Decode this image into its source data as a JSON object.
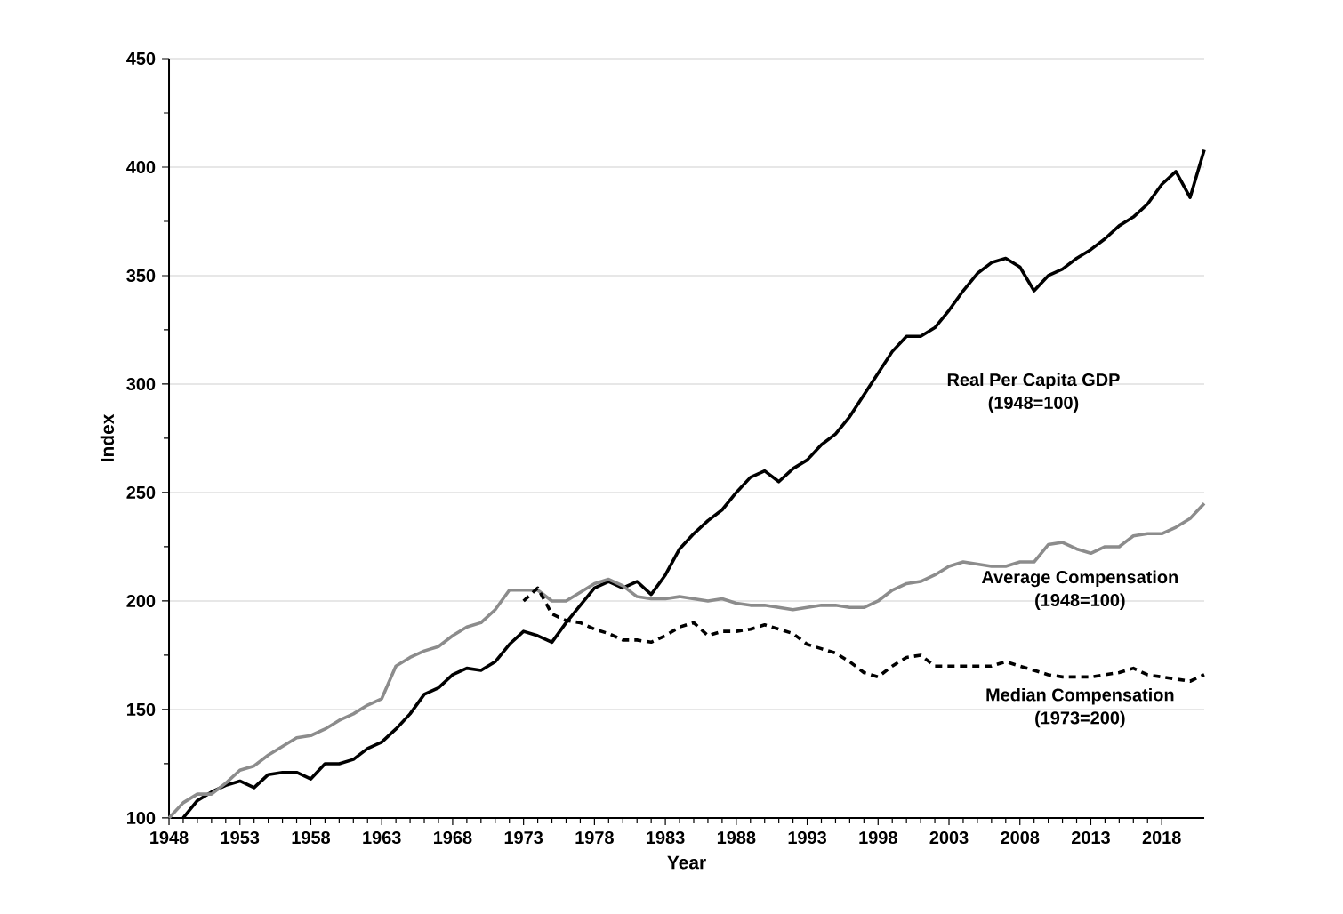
{
  "chart_data": {
    "type": "line",
    "xlabel": "Year",
    "ylabel": "Index",
    "x": [
      1948,
      1949,
      1950,
      1951,
      1952,
      1953,
      1954,
      1955,
      1956,
      1957,
      1958,
      1959,
      1960,
      1961,
      1962,
      1963,
      1964,
      1965,
      1966,
      1967,
      1968,
      1969,
      1970,
      1971,
      1972,
      1973,
      1974,
      1975,
      1976,
      1977,
      1978,
      1979,
      1980,
      1981,
      1982,
      1983,
      1984,
      1985,
      1986,
      1987,
      1988,
      1989,
      1990,
      1991,
      1992,
      1993,
      1994,
      1995,
      1996,
      1997,
      1998,
      1999,
      2000,
      2001,
      2002,
      2003,
      2004,
      2005,
      2006,
      2007,
      2008,
      2009,
      2010,
      2011,
      2012,
      2013,
      2014,
      2015,
      2016,
      2017,
      2018,
      2019,
      2020,
      2021
    ],
    "xlim": [
      1948,
      2021
    ],
    "xticks": [
      1948,
      1953,
      1958,
      1963,
      1968,
      1973,
      1978,
      1983,
      1988,
      1993,
      1998,
      2003,
      2008,
      2013,
      2018
    ],
    "ylim": [
      100,
      450
    ],
    "yticks": [
      100,
      150,
      200,
      250,
      300,
      350,
      400,
      450
    ],
    "grid": "y",
    "legend": false,
    "marker": "none",
    "series": [
      {
        "name": "Real Per Capita GDP\n(1948=100)",
        "color": "#000000",
        "line_style": "solid",
        "values": [
          null,
          100,
          108,
          112,
          115,
          117,
          114,
          120,
          121,
          121,
          118,
          125,
          125,
          127,
          132,
          135,
          141,
          148,
          157,
          160,
          166,
          169,
          168,
          172,
          180,
          186,
          184,
          181,
          190,
          198,
          206,
          209,
          206,
          209,
          203,
          212,
          224,
          231,
          237,
          242,
          250,
          257,
          260,
          255,
          261,
          265,
          272,
          277,
          285,
          295,
          305,
          315,
          322,
          322,
          326,
          334,
          343,
          351,
          356,
          358,
          354,
          343,
          350,
          353,
          358,
          362,
          367,
          373,
          377,
          383,
          392,
          398,
          386,
          408
        ]
      },
      {
        "name": "Average Compensation\n(1948=100)",
        "color": "#8c8c8c",
        "line_style": "solid",
        "values": [
          100,
          107,
          111,
          111,
          116,
          122,
          124,
          129,
          133,
          137,
          138,
          141,
          145,
          148,
          152,
          155,
          170,
          174,
          177,
          179,
          184,
          188,
          190,
          196,
          205,
          205,
          205,
          200,
          200,
          204,
          208,
          210,
          207,
          202,
          201,
          201,
          202,
          201,
          200,
          201,
          199,
          198,
          198,
          197,
          196,
          197,
          198,
          198,
          197,
          197,
          200,
          205,
          208,
          209,
          212,
          216,
          218,
          217,
          216,
          216,
          218,
          218,
          226,
          227,
          224,
          222,
          225,
          225,
          230,
          231,
          231,
          234,
          238,
          245
        ]
      },
      {
        "name": "Median Compensation\n(1973=200)",
        "color": "#000000",
        "line_style": "dashed",
        "values": [
          null,
          null,
          null,
          null,
          null,
          null,
          null,
          null,
          null,
          null,
          null,
          null,
          null,
          null,
          null,
          null,
          null,
          null,
          null,
          null,
          null,
          null,
          null,
          null,
          null,
          200,
          206,
          194,
          191,
          190,
          187,
          185,
          182,
          182,
          181,
          184,
          188,
          190,
          184,
          186,
          186,
          187,
          189,
          187,
          185,
          180,
          178,
          176,
          172,
          167,
          165,
          170,
          174,
          175,
          170,
          170,
          170,
          170,
          170,
          172,
          170,
          168,
          166,
          165,
          165,
          165,
          166,
          167,
          169,
          166,
          165,
          164,
          163,
          166
        ]
      }
    ]
  }
}
